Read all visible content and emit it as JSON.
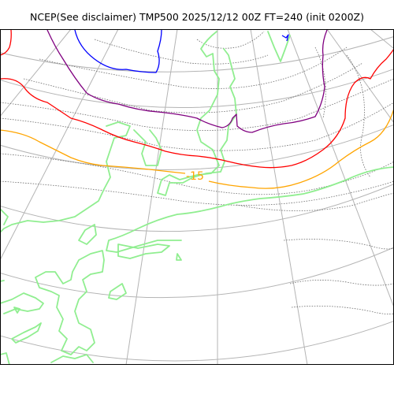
{
  "title": "NCEP(See disclaimer) TMP500 2025/12/12 00Z FT=240 (init 0200Z)",
  "colors": {
    "isotherm": "#707070",
    "coastline": "#90ee90",
    "contour_minus_40": "#0000ff",
    "contour_minus_30": "#800080",
    "contour_minus_20": "#ff0000",
    "contour_minus_15": "#ffa500",
    "graticule": "#b4b4b4",
    "frame": "#000000"
  },
  "contour_labels": {
    "minus_15": "-15"
  }
}
